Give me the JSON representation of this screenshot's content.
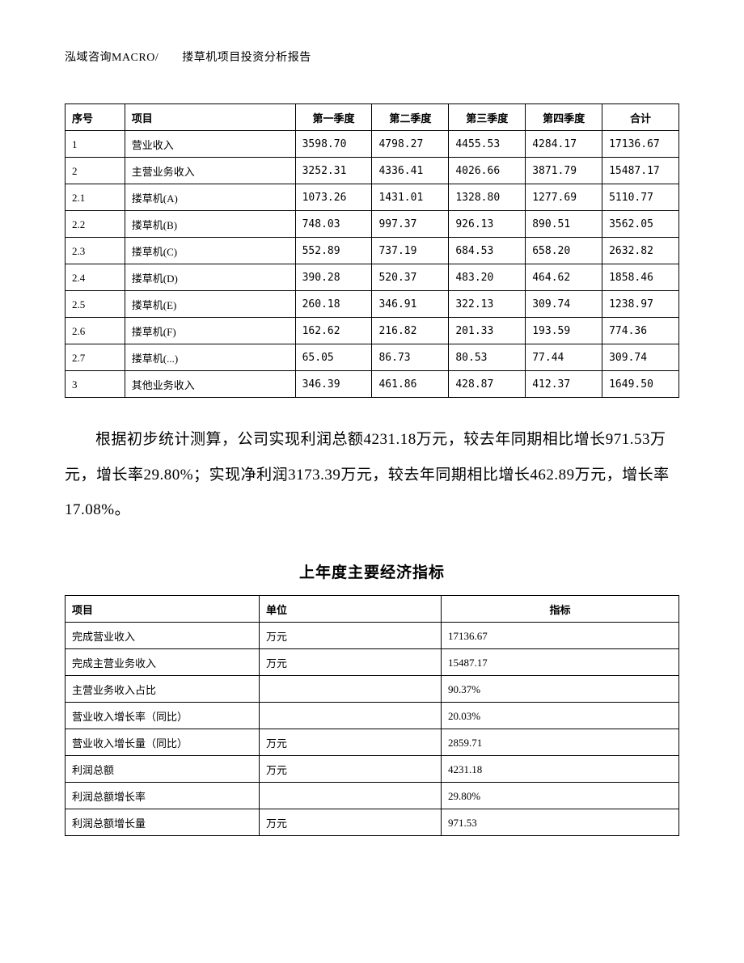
{
  "header": "泓域咨询MACRO/　　搂草机项目投资分析报告",
  "table1": {
    "columns": [
      "序号",
      "项目",
      "第一季度",
      "第二季度",
      "第三季度",
      "第四季度",
      "合计"
    ],
    "rows": [
      [
        "1",
        "营业收入",
        "3598.70",
        "4798.27",
        "4455.53",
        "4284.17",
        "17136.67"
      ],
      [
        "2",
        "主营业务收入",
        "3252.31",
        "4336.41",
        "4026.66",
        "3871.79",
        "15487.17"
      ],
      [
        "2.1",
        "搂草机(A)",
        "1073.26",
        "1431.01",
        "1328.80",
        "1277.69",
        "5110.77"
      ],
      [
        "2.2",
        "搂草机(B)",
        "748.03",
        "997.37",
        "926.13",
        "890.51",
        "3562.05"
      ],
      [
        "2.3",
        "搂草机(C)",
        "552.89",
        "737.19",
        "684.53",
        "658.20",
        "2632.82"
      ],
      [
        "2.4",
        "搂草机(D)",
        "390.28",
        "520.37",
        "483.20",
        "464.62",
        "1858.46"
      ],
      [
        "2.5",
        "搂草机(E)",
        "260.18",
        "346.91",
        "322.13",
        "309.74",
        "1238.97"
      ],
      [
        "2.6",
        "搂草机(F)",
        "162.62",
        "216.82",
        "201.33",
        "193.59",
        "774.36"
      ],
      [
        "2.7",
        "搂草机(...)",
        "65.05",
        "86.73",
        "80.53",
        "77.44",
        "309.74"
      ],
      [
        "3",
        "其他业务收入",
        "346.39",
        "461.86",
        "428.87",
        "412.37",
        "1649.50"
      ]
    ]
  },
  "paragraph": "根据初步统计测算，公司实现利润总额4231.18万元，较去年同期相比增长971.53万元，增长率29.80%；实现净利润3173.39万元，较去年同期相比增长462.89万元，增长率17.08%。",
  "section_title": "上年度主要经济指标",
  "table2": {
    "columns": [
      "项目",
      "单位",
      "指标"
    ],
    "rows": [
      [
        "完成营业收入",
        "万元",
        "17136.67"
      ],
      [
        "完成主营业务收入",
        "万元",
        "15487.17"
      ],
      [
        "主营业务收入占比",
        "",
        "90.37%"
      ],
      [
        "营业收入增长率（同比）",
        "",
        "20.03%"
      ],
      [
        "营业收入增长量（同比）",
        "万元",
        "2859.71"
      ],
      [
        "利润总额",
        "万元",
        "4231.18"
      ],
      [
        "利润总额增长率",
        "",
        "29.80%"
      ],
      [
        "利润总额增长量",
        "万元",
        "971.53"
      ]
    ]
  }
}
